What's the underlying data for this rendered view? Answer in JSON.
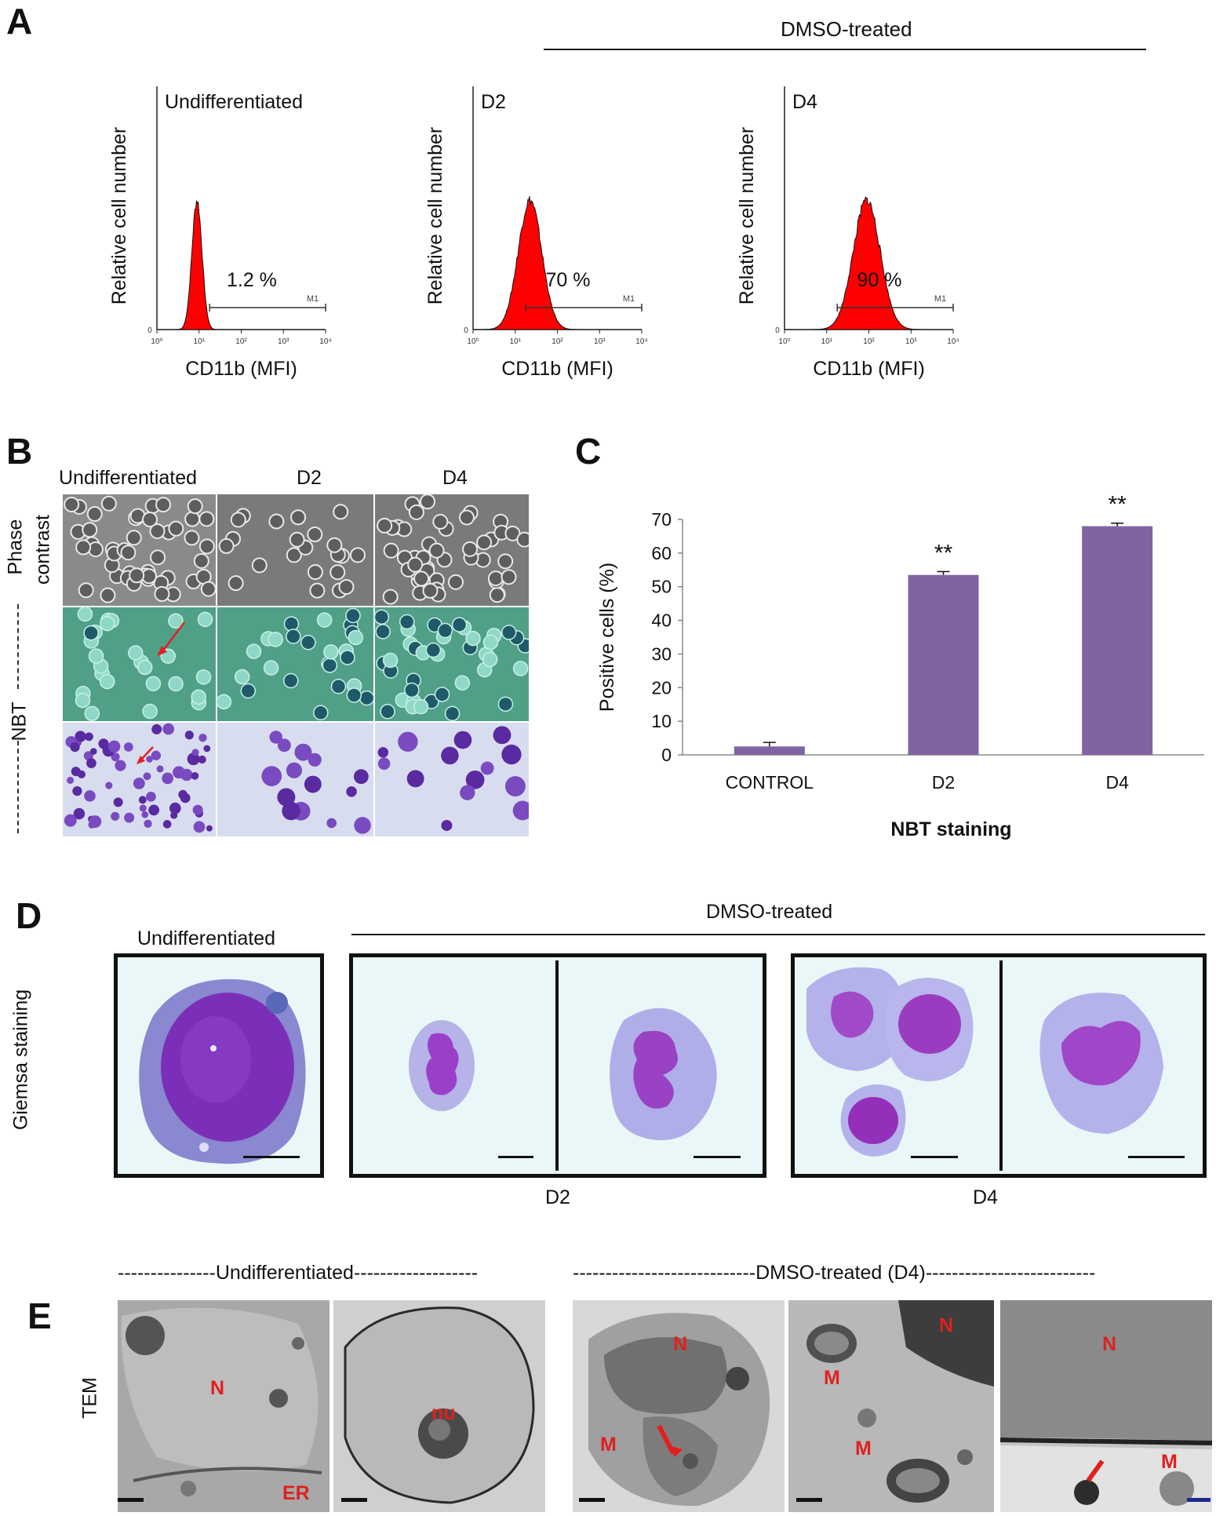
{
  "panels": {
    "A": {
      "letter": "A",
      "group_label": "DMSO-treated",
      "histograms": [
        {
          "title": "Undifferentiated",
          "ylabel": "Relative cell number",
          "xlabel": "CD11b (MFI)",
          "percent": "1.2 %",
          "gate": "M1",
          "peak_log": 0.95,
          "spread": 0.12
        },
        {
          "title": "D2",
          "ylabel": "Relative cell number",
          "xlabel": "CD11b (MFI)",
          "percent": "70 %",
          "gate": "M1",
          "peak_log": 1.35,
          "spread": 0.28
        },
        {
          "title": "D4",
          "ylabel": "Relative cell number",
          "xlabel": "CD11b (MFI)",
          "percent": "90 %",
          "gate": "M1",
          "peak_log": 1.95,
          "spread": 0.32
        }
      ],
      "tick_labels": [
        "10⁰",
        "10¹",
        "10²",
        "10³",
        "10⁴"
      ],
      "zero_label": "0"
    },
    "B": {
      "letter": "B",
      "columns": [
        "Undifferentiated",
        "D2",
        "D4"
      ],
      "row_phase": "Phase contrast",
      "row_phase_line1": "Phase",
      "row_phase_line2": "contrast",
      "row_nbt": "NBT"
    },
    "C": {
      "letter": "C"
    },
    "D": {
      "letter": "D",
      "undiff_label": "Undifferentiated",
      "group_label": "DMSO-treated",
      "row_label": "Giemsa staining",
      "d2_label": "D2",
      "d4_label": "D4"
    },
    "E": {
      "letter": "E",
      "undiff_label": "---------------Undifferentiated-------------------",
      "dmso_label": "----------------------------DMSO-treated (D4)--------------------------",
      "row_label": "TEM",
      "labels": {
        "N": "N",
        "ER": "ER",
        "nu": "nu",
        "M": "M"
      }
    }
  },
  "chart_data": {
    "type": "bar",
    "categories": [
      "CONTROL",
      "D2",
      "D4"
    ],
    "values": [
      2.5,
      53.5,
      68
    ],
    "errors": [
      1.2,
      1.0,
      0.9
    ],
    "significance": [
      "",
      "**",
      "**"
    ],
    "xlabel": "NBT staining",
    "ylabel": "Positive cells (%)",
    "ylim": [
      0,
      70
    ],
    "yticks": [
      0,
      10,
      20,
      30,
      40,
      50,
      60,
      70
    ],
    "bar_color": "#8064a2",
    "grid": false
  }
}
